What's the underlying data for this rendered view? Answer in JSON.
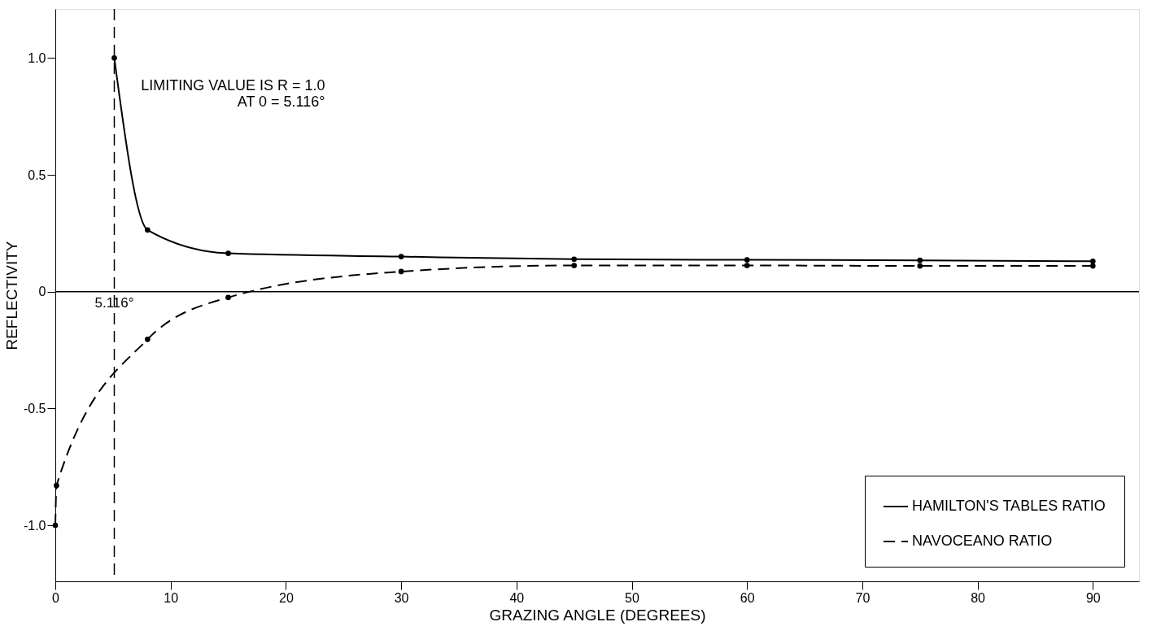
{
  "chart_data": {
    "type": "line",
    "xlabel": "GRAZING ANGLE (DEGREES)",
    "ylabel": "REFLECTIVITY",
    "xlim": [
      0,
      94
    ],
    "ylim": [
      -1.24,
      1.21
    ],
    "xticks": [
      0,
      10,
      20,
      30,
      40,
      50,
      60,
      70,
      80,
      90
    ],
    "yticks": [
      {
        "value": -1.0,
        "label": "-1.0"
      },
      {
        "value": -0.5,
        "label": "-0.5"
      },
      {
        "value": 0,
        "label": "0"
      },
      {
        "value": 0.5,
        "label": "0.5"
      },
      {
        "value": 1.0,
        "label": "1.0"
      }
    ],
    "grid": false,
    "legend": "bottom right",
    "marker": "circle",
    "series": [
      {
        "name": "HAMILTON'S TABLES RATIO",
        "color": "#000000",
        "line_style": "solid",
        "x": [
          5.116,
          8,
          15,
          30,
          45,
          60,
          75,
          90
        ],
        "values": [
          1.0,
          0.264,
          0.164,
          0.15,
          0.139,
          0.136,
          0.134,
          0.13
        ]
      },
      {
        "name": "NAVOCEANO RATIO",
        "color": "#000000",
        "line_style": "dashed",
        "x": [
          0,
          0.1,
          8,
          15,
          30,
          45,
          60,
          75,
          90
        ],
        "values": [
          -1.0,
          -0.83,
          -0.204,
          -0.025,
          0.086,
          0.112,
          0.112,
          0.11,
          0.11
        ]
      }
    ],
    "ref_lines": [
      {
        "axis": "x",
        "value": 5.116,
        "label": "5.116°",
        "line_style": "dashed",
        "color": "#000000"
      },
      {
        "axis": "y",
        "value": 0,
        "label": null,
        "line_style": "solid",
        "color": "#000000"
      }
    ],
    "annotations": [
      {
        "text": "LIMITING VALUE IS R = 1.0\nAT 0 = 5.116°",
        "x": 5.4,
        "y": 0.69
      }
    ]
  }
}
